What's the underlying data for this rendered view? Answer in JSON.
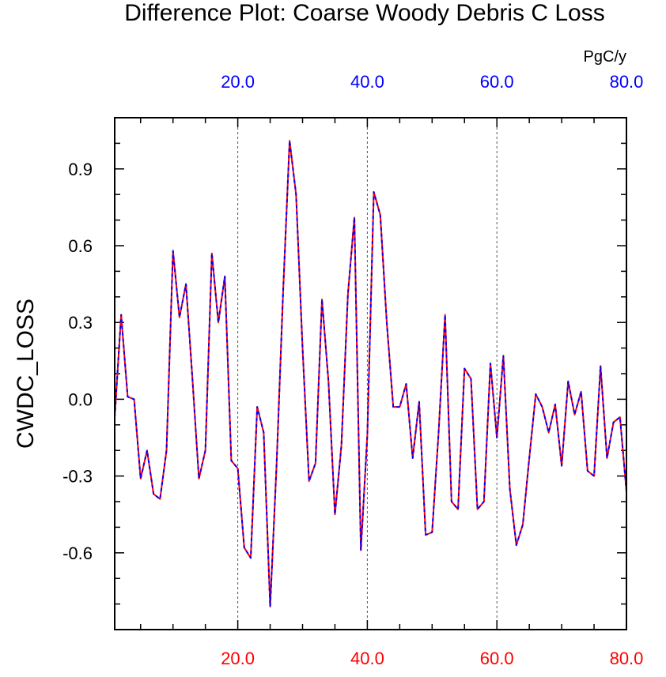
{
  "chart_data": {
    "type": "line",
    "title": "Difference Plot: Coarse Woody Debris C Loss",
    "ylabel": "CWDC_LOSS",
    "units": "PgC/y",
    "xlim": [
      1,
      80
    ],
    "ylim": [
      -0.9,
      1.1
    ],
    "x_ticks_bottom": [
      "20.0",
      "40.0",
      "60.0",
      "80.0"
    ],
    "x_ticks_top": [
      "20.0",
      "40.0",
      "60.0",
      "80.0"
    ],
    "y_ticks": [
      "0.9",
      "0.6",
      "0.3",
      "0.0",
      "-0.3",
      "-0.6"
    ],
    "y_tick_values": [
      0.9,
      0.6,
      0.3,
      0.0,
      -0.3,
      -0.6
    ],
    "x_tick_values": [
      20,
      40,
      60,
      80
    ],
    "vertical_grid": [
      20,
      40,
      60
    ],
    "colors": {
      "series_a": "#ff0000",
      "series_b": "#0000ff",
      "bottom_ticks": "#ff0000",
      "top_ticks": "#0000ff"
    },
    "x": [
      1,
      2,
      3,
      4,
      5,
      6,
      7,
      8,
      9,
      10,
      11,
      12,
      13,
      14,
      15,
      16,
      17,
      18,
      19,
      20,
      21,
      22,
      23,
      24,
      25,
      26,
      27,
      28,
      29,
      30,
      31,
      32,
      33,
      34,
      35,
      36,
      37,
      38,
      39,
      40,
      41,
      42,
      43,
      44,
      45,
      46,
      47,
      48,
      49,
      50,
      51,
      52,
      53,
      54,
      55,
      56,
      57,
      58,
      59,
      60,
      61,
      62,
      63,
      64,
      65,
      66,
      67,
      68,
      69,
      70,
      71,
      72,
      73,
      74,
      75,
      76,
      77,
      78,
      79,
      80
    ],
    "series": [
      {
        "values": [
          -0.07,
          0.33,
          0.01,
          0.0,
          -0.31,
          -0.2,
          -0.37,
          -0.39,
          -0.2,
          0.58,
          0.32,
          0.45,
          0.08,
          -0.31,
          -0.2,
          0.57,
          0.3,
          0.48,
          -0.24,
          -0.27,
          -0.58,
          -0.62,
          -0.03,
          -0.13,
          -0.81,
          -0.25,
          0.42,
          1.01,
          0.8,
          0.2,
          -0.32,
          -0.25,
          0.39,
          0.07,
          -0.45,
          -0.18,
          0.41,
          0.71,
          -0.59,
          -0.14,
          0.81,
          0.72,
          0.3,
          -0.03,
          -0.03,
          0.06,
          -0.23,
          -0.01,
          -0.53,
          -0.52,
          -0.13,
          0.33,
          -0.4,
          -0.43,
          0.12,
          0.08,
          -0.43,
          -0.4,
          0.14,
          -0.15,
          0.17,
          -0.35,
          -0.57,
          -0.49,
          -0.23,
          0.02,
          -0.03,
          -0.13,
          -0.02,
          -0.26,
          0.07,
          -0.06,
          0.03,
          -0.28,
          -0.3,
          0.13,
          -0.23,
          -0.09,
          -0.07,
          -0.36
        ]
      },
      {
        "values": [
          -0.07,
          0.33,
          0.01,
          0.0,
          -0.31,
          -0.2,
          -0.37,
          -0.39,
          -0.2,
          0.58,
          0.32,
          0.45,
          0.08,
          -0.31,
          -0.2,
          0.57,
          0.3,
          0.48,
          -0.24,
          -0.27,
          -0.58,
          -0.62,
          -0.03,
          -0.13,
          -0.81,
          -0.25,
          0.42,
          1.01,
          0.8,
          0.2,
          -0.32,
          -0.25,
          0.39,
          0.07,
          -0.45,
          -0.18,
          0.41,
          0.71,
          -0.59,
          -0.14,
          0.81,
          0.72,
          0.3,
          -0.03,
          -0.03,
          0.06,
          -0.23,
          -0.01,
          -0.53,
          -0.52,
          -0.13,
          0.33,
          -0.4,
          -0.43,
          0.12,
          0.08,
          -0.43,
          -0.4,
          0.14,
          -0.15,
          0.17,
          -0.35,
          -0.57,
          -0.49,
          -0.23,
          0.02,
          -0.03,
          -0.13,
          -0.02,
          -0.26,
          0.07,
          -0.06,
          0.03,
          -0.28,
          -0.3,
          0.13,
          -0.23,
          -0.09,
          -0.07,
          -0.36
        ]
      }
    ]
  }
}
